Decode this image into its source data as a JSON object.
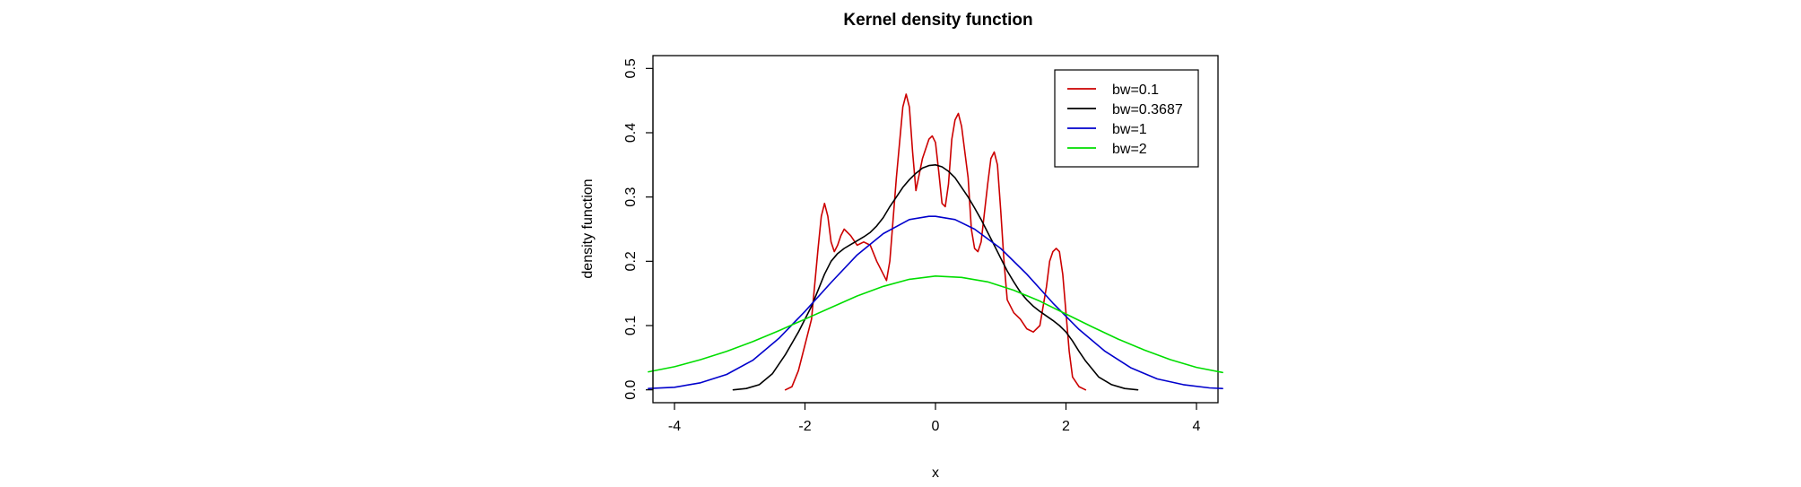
{
  "chart_data": {
    "type": "line",
    "title": "Kernel density function",
    "xlabel": "x",
    "ylabel": "density function",
    "xlim": [
      -4.33,
      4.33
    ],
    "ylim": [
      -0.02,
      0.52
    ],
    "xticks": [
      -4,
      -2,
      0,
      2,
      4
    ],
    "xtick_labels": [
      "-4",
      "-2",
      "0",
      "2",
      "4"
    ],
    "yticks": [
      0.0,
      0.1,
      0.2,
      0.3,
      0.4,
      0.5
    ],
    "ytick_labels": [
      "0.0",
      "0.1",
      "0.2",
      "0.3",
      "0.4",
      "0.5"
    ],
    "grid": false,
    "legend_position": "top-right",
    "series": [
      {
        "name": "bw=0.1",
        "color": "#cc0000",
        "x": [
          -2.3,
          -2.2,
          -2.1,
          -2.0,
          -1.9,
          -1.8,
          -1.75,
          -1.7,
          -1.65,
          -1.6,
          -1.55,
          -1.5,
          -1.45,
          -1.4,
          -1.3,
          -1.2,
          -1.1,
          -1.0,
          -0.9,
          -0.8,
          -0.75,
          -0.7,
          -0.6,
          -0.5,
          -0.45,
          -0.4,
          -0.35,
          -0.3,
          -0.2,
          -0.1,
          -0.05,
          0.0,
          0.05,
          0.1,
          0.15,
          0.2,
          0.25,
          0.3,
          0.35,
          0.4,
          0.5,
          0.55,
          0.6,
          0.65,
          0.7,
          0.8,
          0.85,
          0.9,
          0.95,
          1.0,
          1.05,
          1.1,
          1.2,
          1.3,
          1.4,
          1.5,
          1.6,
          1.7,
          1.75,
          1.8,
          1.85,
          1.9,
          1.95,
          2.0,
          2.05,
          2.1,
          2.2,
          2.3
        ],
        "y": [
          0.0,
          0.005,
          0.03,
          0.07,
          0.11,
          0.22,
          0.27,
          0.29,
          0.27,
          0.23,
          0.215,
          0.225,
          0.24,
          0.25,
          0.24,
          0.225,
          0.23,
          0.225,
          0.2,
          0.18,
          0.17,
          0.2,
          0.33,
          0.44,
          0.46,
          0.44,
          0.37,
          0.31,
          0.36,
          0.39,
          0.395,
          0.385,
          0.34,
          0.29,
          0.285,
          0.32,
          0.39,
          0.42,
          0.43,
          0.41,
          0.33,
          0.25,
          0.22,
          0.215,
          0.23,
          0.32,
          0.36,
          0.37,
          0.35,
          0.28,
          0.2,
          0.14,
          0.12,
          0.11,
          0.095,
          0.09,
          0.1,
          0.16,
          0.2,
          0.215,
          0.22,
          0.215,
          0.18,
          0.12,
          0.06,
          0.02,
          0.005,
          0.0
        ]
      },
      {
        "name": "bw=0.3687",
        "color": "#000000",
        "x": [
          -3.1,
          -2.9,
          -2.7,
          -2.5,
          -2.3,
          -2.1,
          -1.9,
          -1.8,
          -1.7,
          -1.6,
          -1.5,
          -1.4,
          -1.3,
          -1.2,
          -1.1,
          -1.0,
          -0.9,
          -0.8,
          -0.7,
          -0.6,
          -0.5,
          -0.4,
          -0.3,
          -0.2,
          -0.1,
          0.0,
          0.1,
          0.2,
          0.3,
          0.4,
          0.5,
          0.6,
          0.7,
          0.8,
          0.9,
          1.0,
          1.1,
          1.2,
          1.3,
          1.4,
          1.5,
          1.6,
          1.7,
          1.8,
          1.9,
          2.0,
          2.1,
          2.2,
          2.3,
          2.5,
          2.7,
          2.9,
          3.1
        ],
        "y": [
          0.0,
          0.002,
          0.008,
          0.025,
          0.055,
          0.09,
          0.13,
          0.155,
          0.18,
          0.2,
          0.212,
          0.22,
          0.226,
          0.232,
          0.238,
          0.245,
          0.255,
          0.268,
          0.285,
          0.3,
          0.315,
          0.327,
          0.337,
          0.345,
          0.349,
          0.35,
          0.347,
          0.34,
          0.33,
          0.315,
          0.3,
          0.283,
          0.265,
          0.245,
          0.225,
          0.205,
          0.185,
          0.168,
          0.152,
          0.14,
          0.13,
          0.122,
          0.115,
          0.108,
          0.1,
          0.09,
          0.076,
          0.06,
          0.045,
          0.02,
          0.008,
          0.002,
          0.0
        ]
      },
      {
        "name": "bw=1",
        "color": "#0000cc",
        "x": [
          -4.4,
          -4.0,
          -3.6,
          -3.2,
          -2.8,
          -2.4,
          -2.0,
          -1.6,
          -1.2,
          -0.8,
          -0.4,
          -0.1,
          0.0,
          0.3,
          0.6,
          1.0,
          1.4,
          1.8,
          2.2,
          2.6,
          3.0,
          3.4,
          3.8,
          4.2,
          4.4
        ],
        "y": [
          0.002,
          0.004,
          0.011,
          0.024,
          0.046,
          0.08,
          0.122,
          0.167,
          0.21,
          0.243,
          0.265,
          0.27,
          0.27,
          0.265,
          0.25,
          0.22,
          0.18,
          0.135,
          0.094,
          0.06,
          0.034,
          0.017,
          0.008,
          0.003,
          0.002
        ]
      },
      {
        "name": "bw=2",
        "color": "#00dd00",
        "x": [
          -4.4,
          -4.0,
          -3.6,
          -3.2,
          -2.8,
          -2.4,
          -2.0,
          -1.6,
          -1.2,
          -0.8,
          -0.4,
          0.0,
          0.4,
          0.8,
          1.2,
          1.6,
          2.0,
          2.4,
          2.8,
          3.2,
          3.6,
          4.0,
          4.4
        ],
        "y": [
          0.028,
          0.036,
          0.047,
          0.06,
          0.075,
          0.092,
          0.11,
          0.128,
          0.146,
          0.161,
          0.172,
          0.177,
          0.175,
          0.168,
          0.155,
          0.138,
          0.118,
          0.098,
          0.079,
          0.062,
          0.047,
          0.035,
          0.027
        ]
      }
    ]
  }
}
